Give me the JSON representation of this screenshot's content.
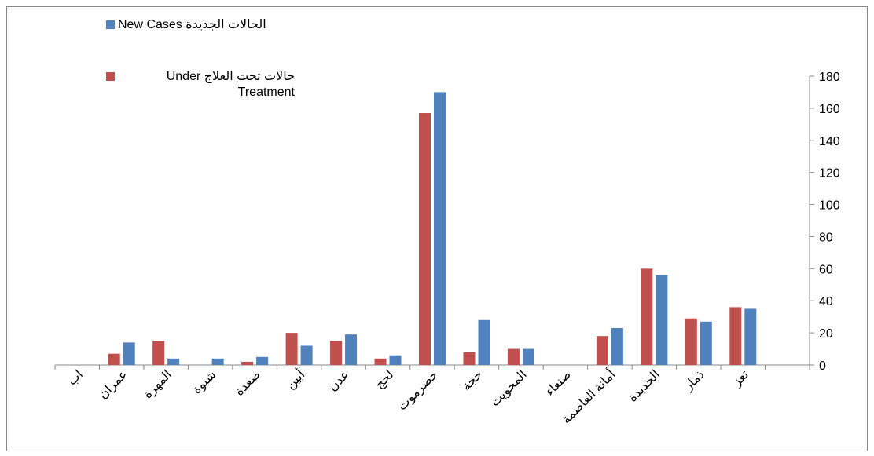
{
  "chart_data": {
    "type": "bar",
    "categories": [
      "اب",
      "عمران",
      "المهرة",
      "شبوة",
      "صعدة",
      "أبين",
      "عدن",
      "لحج",
      "حضرموت",
      "حجة",
      "المحويت",
      "صنعاء",
      "أمانة العاصمة",
      "الحديدة",
      "ذمار",
      "تعز",
      null
    ],
    "series": [
      {
        "name": "حالات تحت العلاج Under Treatment",
        "color": "#c0504d",
        "values": [
          0,
          7,
          15,
          0,
          2,
          20,
          15,
          4,
          157,
          8,
          10,
          0,
          18,
          60,
          29,
          36,
          null
        ]
      },
      {
        "name": "الحالات الجديدة New Cases",
        "color": "#4f81bd",
        "values": [
          0,
          14,
          4,
          4,
          5,
          12,
          19,
          6,
          170,
          28,
          10,
          0,
          23,
          56,
          27,
          35,
          null
        ]
      }
    ],
    "ylim": [
      0,
      180
    ],
    "yticks": [
      0,
      20,
      40,
      60,
      80,
      100,
      120,
      140,
      160,
      180
    ],
    "y_axis_side": "right",
    "grid": false
  }
}
